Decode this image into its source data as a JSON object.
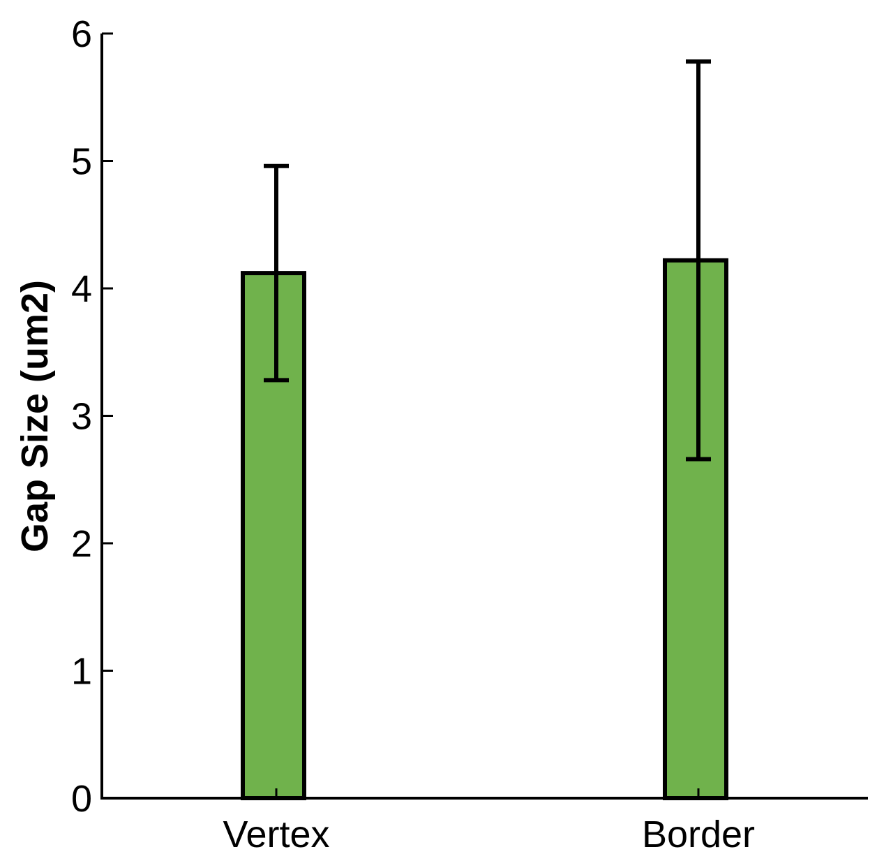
{
  "chart_data": {
    "type": "bar",
    "categories": [
      "Vertex",
      "Border"
    ],
    "series": [
      {
        "values": [
          4.12,
          4.22
        ],
        "error_low": [
          3.28,
          2.66
        ],
        "error_high": [
          4.96,
          5.78
        ]
      }
    ],
    "title": "",
    "xlabel": "",
    "ylabel": "Gap Size (um2)",
    "ylim": [
      0,
      6
    ],
    "yticks": [
      0,
      1,
      2,
      3,
      4,
      5,
      6
    ],
    "grid": false,
    "legend": "none",
    "bar_color": "#70b24c",
    "edge_color": "#000000"
  }
}
